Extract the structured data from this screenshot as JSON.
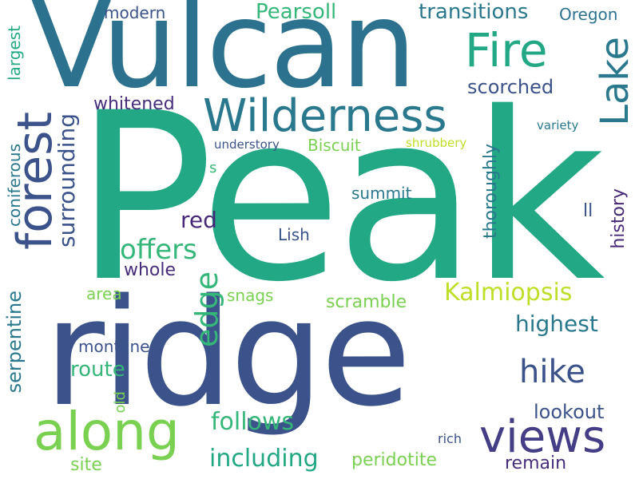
{
  "colors": {
    "background": "#ffffff",
    "palette": [
      "#2c728e",
      "#3b528b",
      "#433e85",
      "#472d7b",
      "#22a884",
      "#2a788e",
      "#35b779",
      "#7ad151",
      "#bddf26",
      "#482878"
    ]
  },
  "words": [
    {
      "text": "Peak",
      "color": "#22a884",
      "vertical": false
    },
    {
      "text": "ridge",
      "color": "#3b528b",
      "vertical": false
    },
    {
      "text": "Vulcan",
      "color": "#2c728e",
      "vertical": false
    },
    {
      "text": "Wilderness",
      "color": "#2a788e",
      "vertical": false
    },
    {
      "text": "Fire",
      "color": "#22a884",
      "vertical": false
    },
    {
      "text": "Lake",
      "color": "#2a788e",
      "vertical": true
    },
    {
      "text": "forest",
      "color": "#3b528b",
      "vertical": true
    },
    {
      "text": "along",
      "color": "#7ad151",
      "vertical": false
    },
    {
      "text": "views",
      "color": "#433e85",
      "vertical": false
    },
    {
      "text": "hike",
      "color": "#3b528b",
      "vertical": false
    },
    {
      "text": "edge",
      "color": "#35b779",
      "vertical": true
    },
    {
      "text": "surrounding",
      "color": "#3b528b",
      "vertical": true
    },
    {
      "text": "Kalmiopsis",
      "color": "#bddf26",
      "vertical": false
    },
    {
      "text": "offers",
      "color": "#35b779",
      "vertical": false
    },
    {
      "text": "Pearsoll",
      "color": "#35b779",
      "vertical": false
    },
    {
      "text": "transitions",
      "color": "#2a788e",
      "vertical": false
    },
    {
      "text": "Oregon",
      "color": "#2c728e",
      "vertical": false
    },
    {
      "text": "modern",
      "color": "#3b528b",
      "vertical": false
    },
    {
      "text": "scorched",
      "color": "#3b528b",
      "vertical": false
    },
    {
      "text": "whitened",
      "color": "#472d7b",
      "vertical": false
    },
    {
      "text": "largest",
      "color": "#22a884",
      "vertical": true
    },
    {
      "text": "coniferous",
      "color": "#2a788e",
      "vertical": true
    },
    {
      "text": "understory",
      "color": "#3b528b",
      "vertical": false
    },
    {
      "text": "Biscuit",
      "color": "#7ad151",
      "vertical": false
    },
    {
      "text": "shrubbery",
      "color": "#bddf26",
      "vertical": false
    },
    {
      "text": "variety",
      "color": "#2a788e",
      "vertical": false
    },
    {
      "text": "s",
      "color": "#35b779",
      "vertical": false
    },
    {
      "text": "summit",
      "color": "#2a788e",
      "vertical": false
    },
    {
      "text": "thoroughly",
      "color": "#2a788e",
      "vertical": true
    },
    {
      "text": "red",
      "color": "#482878",
      "vertical": false
    },
    {
      "text": "ll",
      "color": "#3b528b",
      "vertical": false
    },
    {
      "text": "history",
      "color": "#482878",
      "vertical": true
    },
    {
      "text": "Lish",
      "color": "#3b528b",
      "vertical": false
    },
    {
      "text": "whole",
      "color": "#472d7b",
      "vertical": false
    },
    {
      "text": "area",
      "color": "#7ad151",
      "vertical": false
    },
    {
      "text": "snags",
      "color": "#7ad151",
      "vertical": false
    },
    {
      "text": "scramble",
      "color": "#7ad151",
      "vertical": false
    },
    {
      "text": "highest",
      "color": "#2a788e",
      "vertical": false
    },
    {
      "text": "serpentine",
      "color": "#2a788e",
      "vertical": true
    },
    {
      "text": "montane",
      "color": "#3b528b",
      "vertical": false
    },
    {
      "text": "route",
      "color": "#35b779",
      "vertical": false
    },
    {
      "text": "old",
      "color": "#7ad151",
      "vertical": true
    },
    {
      "text": "follows",
      "color": "#35b779",
      "vertical": false
    },
    {
      "text": "lookout",
      "color": "#3b528b",
      "vertical": false
    },
    {
      "text": "including",
      "color": "#22a884",
      "vertical": false
    },
    {
      "text": "rich",
      "color": "#3b528b",
      "vertical": false
    },
    {
      "text": "site",
      "color": "#7ad151",
      "vertical": false
    },
    {
      "text": "peridotite",
      "color": "#7ad151",
      "vertical": false
    },
    {
      "text": "remain",
      "color": "#472d7b",
      "vertical": false
    }
  ]
}
